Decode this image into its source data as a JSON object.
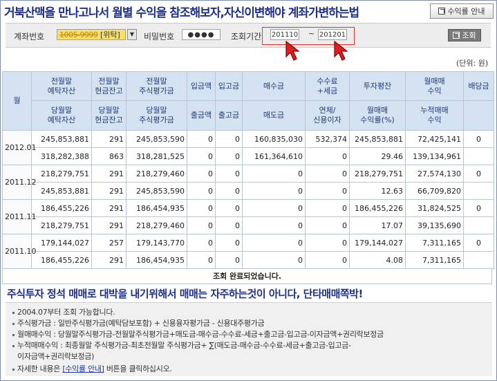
{
  "header": {
    "title": "거북산맥을 만나고나서 월별 수익을 참조해보자,자신이변해야 계좌가변하는법",
    "guide_button": "수익률 안내"
  },
  "search": {
    "account_label": "계좌번호",
    "account_value": "1005-9999",
    "account_type": "[위탁]",
    "password_label": "비밀번호",
    "password_value": "●●●●",
    "period_label": "조회기간",
    "period_from": "201110",
    "period_separator": "~",
    "period_to": "201201",
    "query_button": "조회"
  },
  "unit_label": "(단위: 원)",
  "table": {
    "month_header": "월",
    "headers_top": [
      "전월말\n예탁자산",
      "전월말\n현금잔고",
      "전월말\n주식평가금",
      "입금액",
      "입고금",
      "매수금",
      "수수료\n+세금",
      "투자평잔",
      "월매매\n수익",
      "배당금"
    ],
    "headers_bottom": [
      "당월말\n예탁자산",
      "당월말\n현금잔고",
      "당월말\n주식평가금",
      "출금액",
      "출고금",
      "매도금",
      "연체/\n신용이자",
      "월매매\n수익률(%)",
      "누적매매\n수익",
      ""
    ],
    "rows": [
      {
        "month": "2012.01",
        "top": [
          "245,853,881",
          "291",
          "245,853,590",
          "0",
          "0",
          "160,835,030",
          "532,374",
          "245,853,881",
          "72,425,141",
          "0"
        ],
        "bottom": [
          "318,282,388",
          "863",
          "318,281,525",
          "0",
          "0",
          "161,364,610",
          "0",
          "29.46",
          "139,134,961",
          ""
        ]
      },
      {
        "month": "2011.12",
        "top": [
          "218,279,751",
          "291",
          "218,279,460",
          "0",
          "0",
          "0",
          "0",
          "218,279,751",
          "27,574,130",
          "0"
        ],
        "bottom": [
          "245,853,881",
          "291",
          "245,853,590",
          "0",
          "0",
          "0",
          "0",
          "12.63",
          "66,709,820",
          ""
        ]
      },
      {
        "month": "2011.11",
        "top": [
          "186,455,226",
          "291",
          "186,454,935",
          "0",
          "0",
          "0",
          "0",
          "186,455,226",
          "31,824,525",
          "0"
        ],
        "bottom": [
          "218,279,751",
          "291",
          "218,279,460",
          "0",
          "0",
          "0",
          "0",
          "17.07",
          "39,135,690",
          ""
        ]
      },
      {
        "month": "2011.10",
        "top": [
          "179,144,027",
          "257",
          "179,143,770",
          "0",
          "0",
          "0",
          "0",
          "179,144,027",
          "7,311,165",
          "0"
        ],
        "bottom": [
          "186,455,226",
          "291",
          "186,454,935",
          "0",
          "0",
          "0",
          "0",
          "4.08",
          "7,311,165",
          ""
        ]
      }
    ]
  },
  "status": "조회 완료되었습니다.",
  "banner": "주식투자 정석 매매로 대박을 내기위해서 매매는 자주하는것이 아니다, 단타매매쪽박!",
  "notes": {
    "n1": "2004.07부터 조회 가능합니다.",
    "n2": "주식평가금 : 일반주식평가금(예탁담보포함) + 신용융자평가금 - 신용대주평가금",
    "n3": "월매매수익 : 당월말주식평가금-전월말주식평가금+매도금-매수금-수수료-세금+출고금-입고금-이자금액+권리락보정금",
    "n4a": "누적매매수익 : 최종월말 주식평가금-최초전월말 주식평가금+ ∑(매도금-매수금-수수료-세금+출고금-입고금-",
    "n4b": "이자금액+권리락보정금)",
    "n5_pre": "자세한 내용은",
    "n5_link": "[수익률 안내]",
    "n5_post": "버튼을 클릭하십시오."
  },
  "colors": {
    "title": "#1d2f8c",
    "header_bg": "#d5e2f2",
    "profit_red": "#cc1111",
    "asset_blue": "#1f3a9a",
    "highlight_box": "#e03030"
  }
}
